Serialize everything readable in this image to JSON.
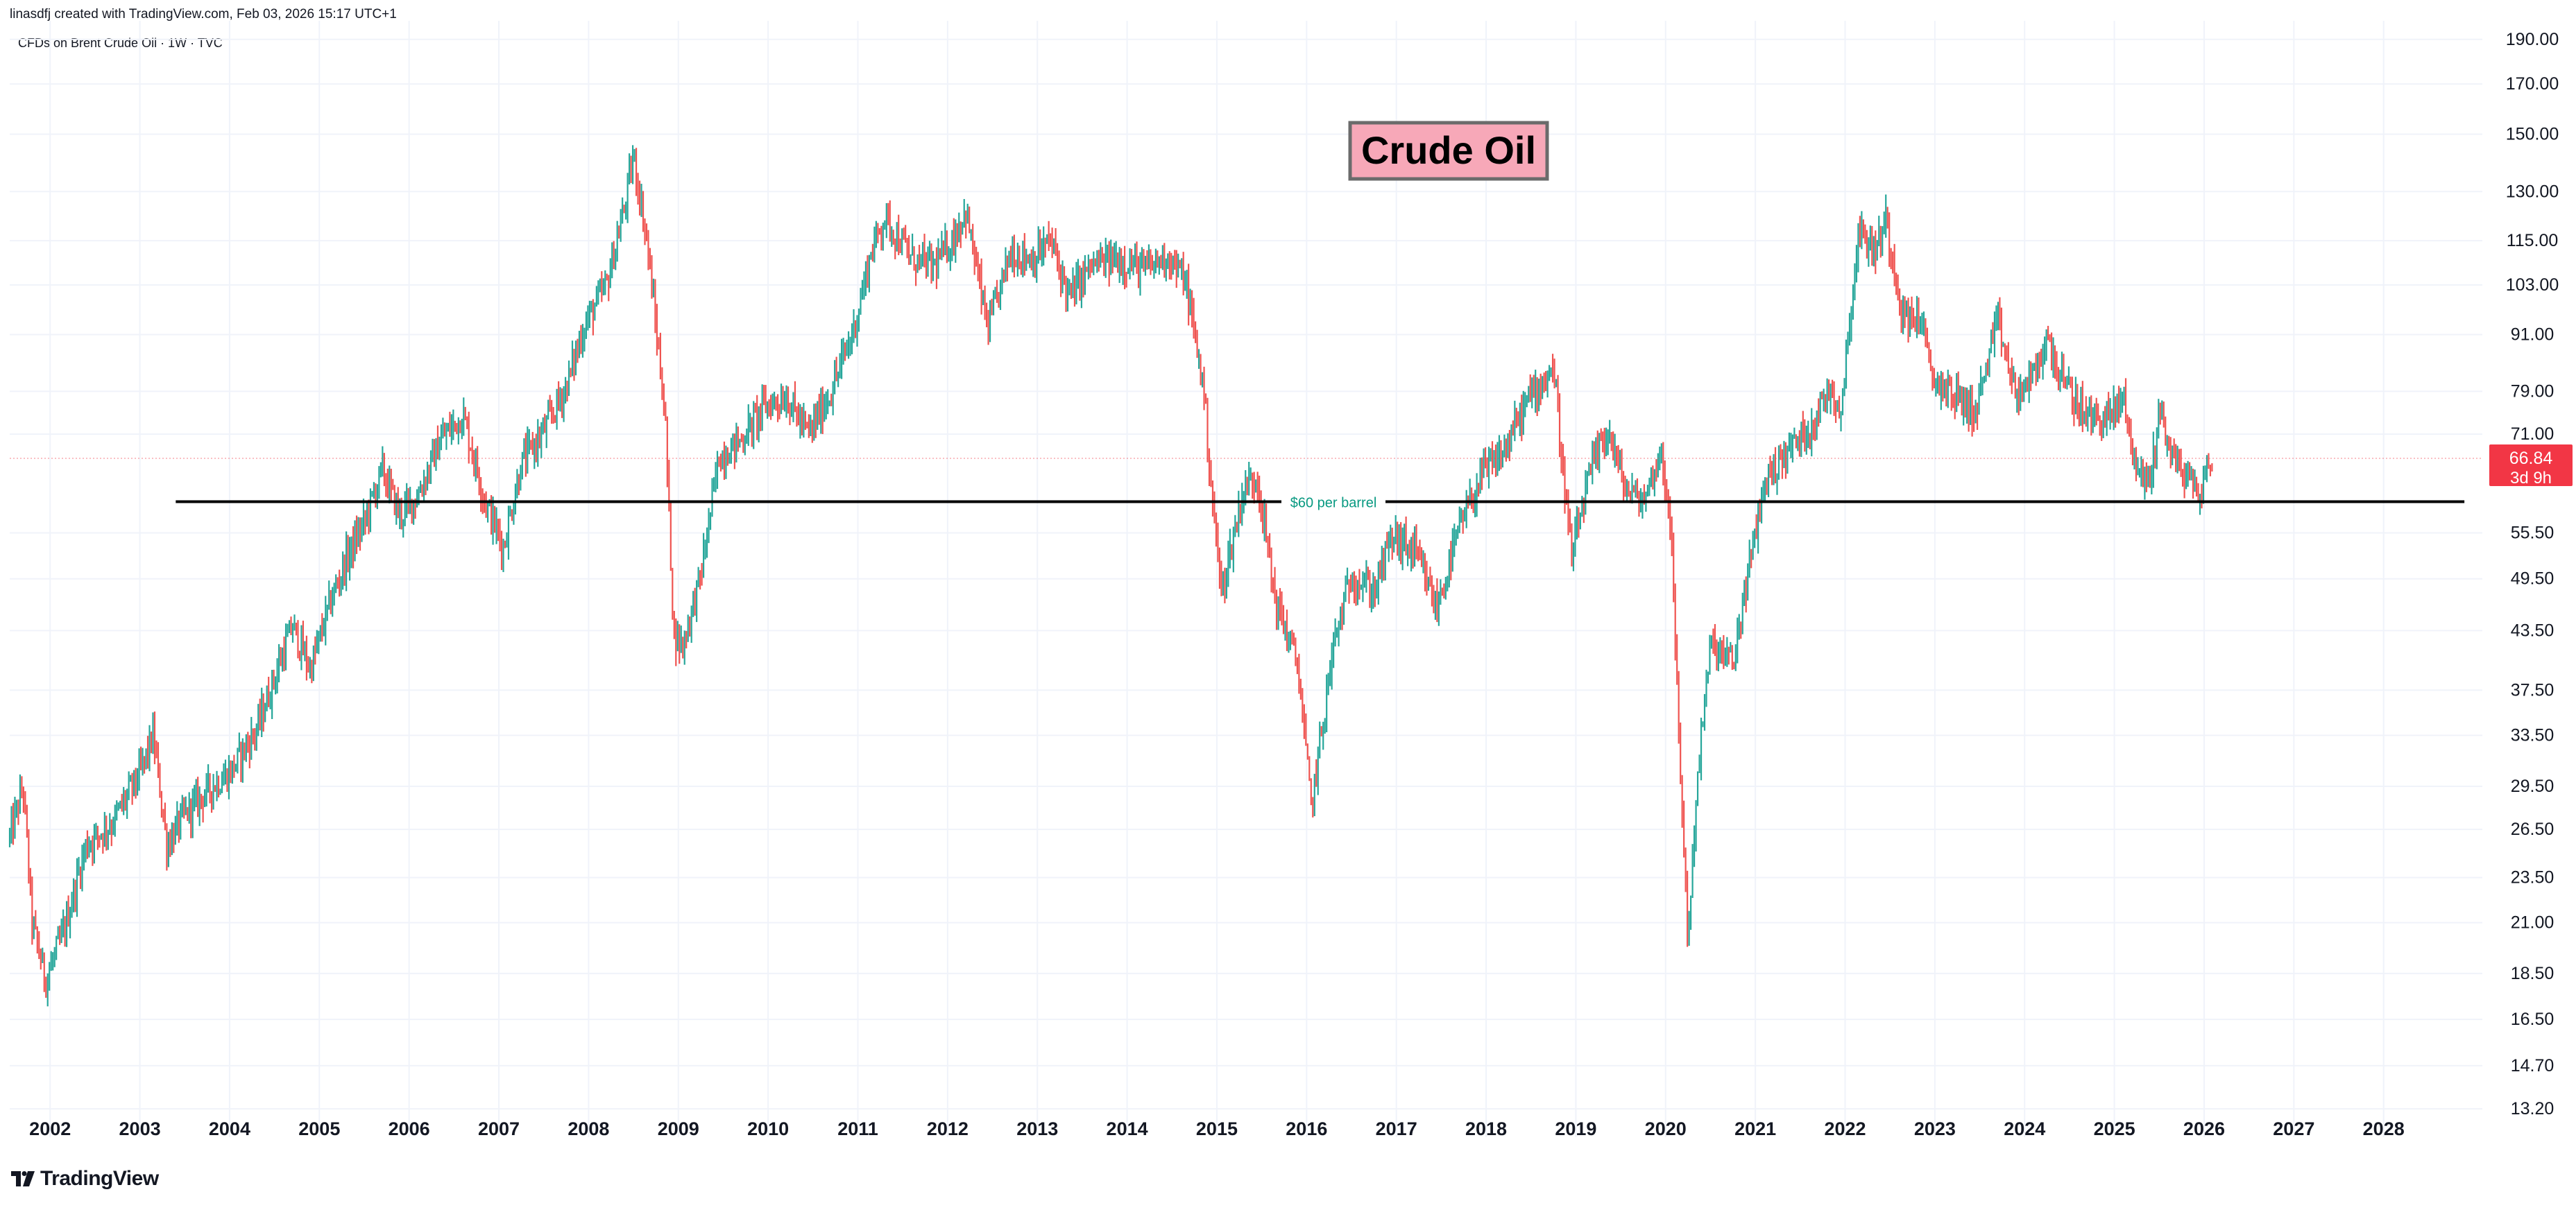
{
  "header": {
    "credit": "linasdfj created with TradingView.com, Feb 03, 2026 15:17 UTC+1",
    "symbol_line": "CFDs on Brent Crude Oil · 1W · TVC"
  },
  "footer": {
    "logo_text": "TradingView"
  },
  "colors": {
    "up": "#26a69a",
    "down": "#ef5350",
    "grid": "#f0f3fa",
    "axis_text": "#131722",
    "price_tag": "#f23645",
    "title_box_fill": "#f7a8b8",
    "title_box_border": "#6b6b6b",
    "support_line": "#000000",
    "support_label": "#089981"
  },
  "chart_data": {
    "type": "candlestick",
    "title": "Crude Oil",
    "timeframe": "1W",
    "yscale": "log",
    "ylim": [
      12.3,
      199
    ],
    "xlim": [
      2001.55,
      2029.1
    ],
    "y_ticks": [
      "190.00",
      "170.00",
      "150.00",
      "130.00",
      "115.00",
      "103.00",
      "91.00",
      "79.00",
      "71.00",
      "55.50",
      "49.50",
      "43.50",
      "37.50",
      "33.50",
      "29.50",
      "26.50",
      "23.50",
      "21.00",
      "18.50",
      "16.50",
      "14.70",
      "13.20"
    ],
    "x_ticks": [
      "2002",
      "2003",
      "2004",
      "2005",
      "2006",
      "2007",
      "2008",
      "2009",
      "2010",
      "2011",
      "2012",
      "2013",
      "2014",
      "2015",
      "2016",
      "2017",
      "2018",
      "2019",
      "2020",
      "2021",
      "2022",
      "2023",
      "2024",
      "2025",
      "2026",
      "2027",
      "2028"
    ],
    "last_price": "66.84",
    "countdown": "3d 9h",
    "annotations": [
      {
        "type": "horizontal_line",
        "price": 60,
        "from_x": 2003.4,
        "to_x": 2028.9,
        "label": "$60 per barrel"
      },
      {
        "type": "text_box",
        "text": "Crude Oil"
      }
    ],
    "price_path": [
      [
        2001.55,
        26.0
      ],
      [
        2001.7,
        29.5
      ],
      [
        2001.8,
        21.0
      ],
      [
        2001.95,
        18.2
      ],
      [
        2002.15,
        20.5
      ],
      [
        2002.4,
        25.5
      ],
      [
        2002.7,
        27.0
      ],
      [
        2003.0,
        30.5
      ],
      [
        2003.15,
        33.5
      ],
      [
        2003.3,
        25.5
      ],
      [
        2003.5,
        27.5
      ],
      [
        2003.8,
        29.5
      ],
      [
        2004.0,
        30.5
      ],
      [
        2004.3,
        34.0
      ],
      [
        2004.55,
        40.0
      ],
      [
        2004.7,
        44.0
      ],
      [
        2004.9,
        39.5
      ],
      [
        2005.1,
        46.0
      ],
      [
        2005.3,
        52.0
      ],
      [
        2005.5,
        57.0
      ],
      [
        2005.7,
        65.0
      ],
      [
        2005.9,
        58.0
      ],
      [
        2006.1,
        61.0
      ],
      [
        2006.35,
        70.0
      ],
      [
        2006.6,
        74.5
      ],
      [
        2006.85,
        60.0
      ],
      [
        2007.05,
        53.5
      ],
      [
        2007.25,
        66.0
      ],
      [
        2007.5,
        71.5
      ],
      [
        2007.75,
        80.0
      ],
      [
        2007.95,
        93.0
      ],
      [
        2008.2,
        103.0
      ],
      [
        2008.4,
        125.0
      ],
      [
        2008.5,
        142.0
      ],
      [
        2008.65,
        115.0
      ],
      [
        2008.85,
        75.0
      ],
      [
        2008.95,
        43.0
      ],
      [
        2009.05,
        42.0
      ],
      [
        2009.25,
        50.0
      ],
      [
        2009.45,
        67.0
      ],
      [
        2009.7,
        70.0
      ],
      [
        2009.95,
        76.0
      ],
      [
        2010.2,
        78.0
      ],
      [
        2010.45,
        71.0
      ],
      [
        2010.7,
        79.0
      ],
      [
        2010.95,
        92.0
      ],
      [
        2011.15,
        112.0
      ],
      [
        2011.3,
        122.0
      ],
      [
        2011.6,
        110.0
      ],
      [
        2011.85,
        108.0
      ],
      [
        2012.05,
        115.0
      ],
      [
        2012.2,
        124.0
      ],
      [
        2012.45,
        92.0
      ],
      [
        2012.7,
        112.0
      ],
      [
        2012.95,
        110.0
      ],
      [
        2013.15,
        115.0
      ],
      [
        2013.35,
        100.0
      ],
      [
        2013.6,
        108.0
      ],
      [
        2013.9,
        110.0
      ],
      [
        2014.2,
        107.0
      ],
      [
        2014.45,
        111.0
      ],
      [
        2014.65,
        104.0
      ],
      [
        2014.85,
        80.0
      ],
      [
        2014.95,
        60.0
      ],
      [
        2015.05,
        48.0
      ],
      [
        2015.3,
        62.0
      ],
      [
        2015.45,
        64.0
      ],
      [
        2015.65,
        47.0
      ],
      [
        2015.9,
        40.0
      ],
      [
        2016.05,
        28.0
      ],
      [
        2016.3,
        42.0
      ],
      [
        2016.5,
        50.0
      ],
      [
        2016.75,
        48.0
      ],
      [
        2016.95,
        55.0
      ],
      [
        2017.2,
        53.0
      ],
      [
        2017.45,
        46.0
      ],
      [
        2017.7,
        56.0
      ],
      [
        2017.95,
        64.0
      ],
      [
        2018.2,
        68.0
      ],
      [
        2018.45,
        77.0
      ],
      [
        2018.75,
        84.0
      ],
      [
        2018.95,
        52.0
      ],
      [
        2019.15,
        64.0
      ],
      [
        2019.35,
        72.0
      ],
      [
        2019.55,
        62.0
      ],
      [
        2019.75,
        60.0
      ],
      [
        2019.95,
        68.0
      ],
      [
        2020.05,
        58.0
      ],
      [
        2020.15,
        33.0
      ],
      [
        2020.25,
        20.0
      ],
      [
        2020.35,
        30.0
      ],
      [
        2020.5,
        42.0
      ],
      [
        2020.75,
        40.0
      ],
      [
        2020.9,
        49.0
      ],
      [
        2021.1,
        63.0
      ],
      [
        2021.35,
        68.0
      ],
      [
        2021.6,
        72.0
      ],
      [
        2021.85,
        80.0
      ],
      [
        2021.95,
        75.0
      ],
      [
        2022.15,
        118.0
      ],
      [
        2022.35,
        112.0
      ],
      [
        2022.45,
        122.0
      ],
      [
        2022.65,
        95.0
      ],
      [
        2022.85,
        95.0
      ],
      [
        2022.95,
        82.0
      ],
      [
        2023.25,
        78.0
      ],
      [
        2023.45,
        75.0
      ],
      [
        2023.7,
        94.0
      ],
      [
        2023.9,
        78.0
      ],
      [
        2024.1,
        82.0
      ],
      [
        2024.25,
        90.0
      ],
      [
        2024.45,
        80.0
      ],
      [
        2024.7,
        74.0
      ],
      [
        2024.95,
        74.0
      ],
      [
        2025.1,
        78.0
      ],
      [
        2025.25,
        65.0
      ],
      [
        2025.4,
        63.0
      ],
      [
        2025.5,
        76.0
      ],
      [
        2025.65,
        67.0
      ],
      [
        2025.8,
        64.0
      ],
      [
        2025.95,
        61.0
      ],
      [
        2026.05,
        66.0
      ],
      [
        2026.09,
        66.84
      ]
    ]
  }
}
